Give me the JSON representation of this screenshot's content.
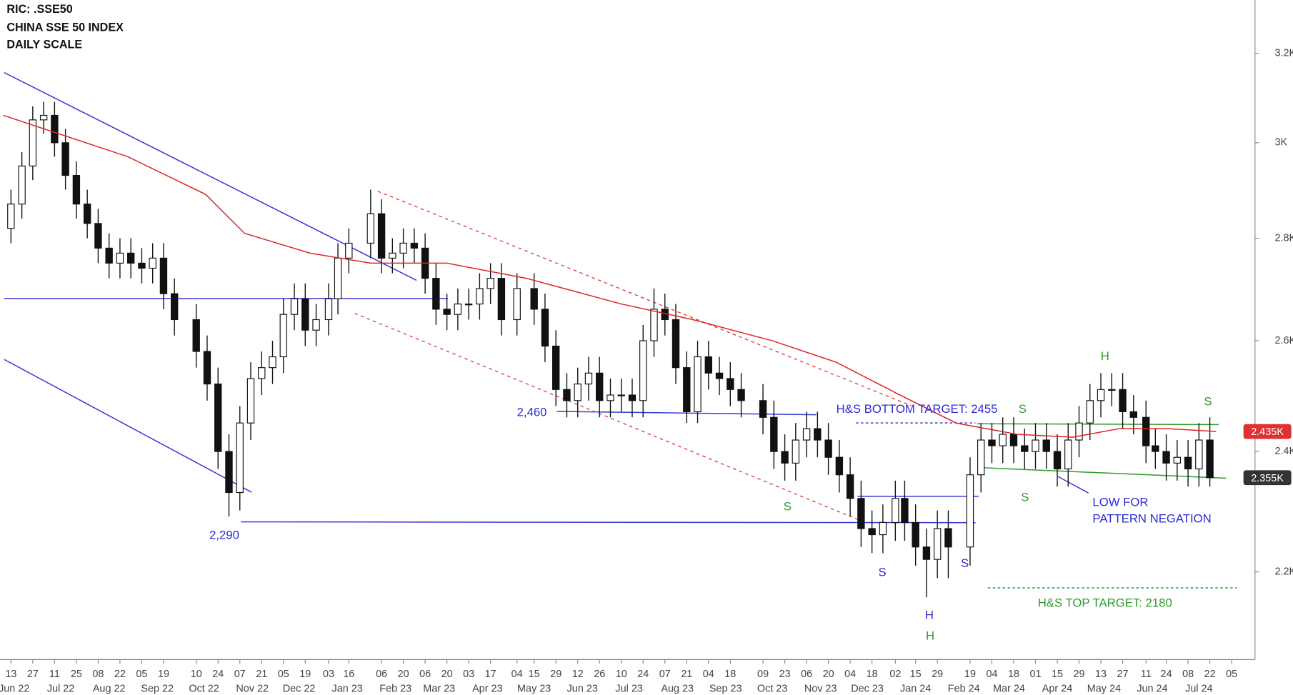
{
  "chart_data": {
    "type": "candlestick",
    "title": "RIC: .SSE50",
    "subtitle": "CHINA SSE 50 INDEX",
    "scale_note": "DAILY SCALE",
    "y_scale": "log",
    "ylim": [
      2065,
      3326
    ],
    "yticks": [
      {
        "value": 3200,
        "label": "3.2K"
      },
      {
        "value": 3000,
        "label": "3K"
      },
      {
        "value": 2800,
        "label": "2.8K"
      },
      {
        "value": 2600,
        "label": "2.6K"
      },
      {
        "value": 2400,
        "label": "2.4K"
      },
      {
        "value": 2200,
        "label": "2.2K"
      }
    ],
    "xlim": [
      "2022-06-06",
      "2024-08-20"
    ],
    "xticks": [
      {
        "value": "2022-06-13",
        "label": "13"
      },
      {
        "value": "2022-06-27",
        "label": "27"
      },
      {
        "value": "2022-07-11",
        "label": "11"
      },
      {
        "value": "2022-07-25",
        "label": "25"
      },
      {
        "value": "2022-08-08",
        "label": "08"
      },
      {
        "value": "2022-08-22",
        "label": "22"
      },
      {
        "value": "2022-09-05",
        "label": "05"
      },
      {
        "value": "2022-09-19",
        "label": "19"
      },
      {
        "value": "2022-10-10",
        "label": "10"
      },
      {
        "value": "2022-10-24",
        "label": "24"
      },
      {
        "value": "2022-11-07",
        "label": "07"
      },
      {
        "value": "2022-11-21",
        "label": "21"
      },
      {
        "value": "2022-12-05",
        "label": "05"
      },
      {
        "value": "2022-12-19",
        "label": "19"
      },
      {
        "value": "2023-01-03",
        "label": "03"
      },
      {
        "value": "2023-01-16",
        "label": "16"
      },
      {
        "value": "2023-02-06",
        "label": "06"
      },
      {
        "value": "2023-02-20",
        "label": "20"
      },
      {
        "value": "2023-03-06",
        "label": "06"
      },
      {
        "value": "2023-03-20",
        "label": "20"
      },
      {
        "value": "2023-04-03",
        "label": "03"
      },
      {
        "value": "2023-04-17",
        "label": "17"
      },
      {
        "value": "2023-05-04",
        "label": "04"
      },
      {
        "value": "2023-05-15",
        "label": "15"
      },
      {
        "value": "2023-05-29",
        "label": "29"
      },
      {
        "value": "2023-06-12",
        "label": "12"
      },
      {
        "value": "2023-06-26",
        "label": "26"
      },
      {
        "value": "2023-07-10",
        "label": "10"
      },
      {
        "value": "2023-07-24",
        "label": "24"
      },
      {
        "value": "2023-08-07",
        "label": "07"
      },
      {
        "value": "2023-08-21",
        "label": "21"
      },
      {
        "value": "2023-09-04",
        "label": "04"
      },
      {
        "value": "2023-09-18",
        "label": "18"
      },
      {
        "value": "2023-10-09",
        "label": "09"
      },
      {
        "value": "2023-10-23",
        "label": "23"
      },
      {
        "value": "2023-11-06",
        "label": "06"
      },
      {
        "value": "2023-11-20",
        "label": "20"
      },
      {
        "value": "2023-12-04",
        "label": "04"
      },
      {
        "value": "2023-12-18",
        "label": "18"
      },
      {
        "value": "2024-01-02",
        "label": "02"
      },
      {
        "value": "2024-01-15",
        "label": "15"
      },
      {
        "value": "2024-01-29",
        "label": "29"
      },
      {
        "value": "2024-02-19",
        "label": "19"
      },
      {
        "value": "2024-03-04",
        "label": "04"
      },
      {
        "value": "2024-03-18",
        "label": "18"
      },
      {
        "value": "2024-04-01",
        "label": "01"
      },
      {
        "value": "2024-04-15",
        "label": "15"
      },
      {
        "value": "2024-04-29",
        "label": "29"
      },
      {
        "value": "2024-05-13",
        "label": "13"
      },
      {
        "value": "2024-05-27",
        "label": "27"
      },
      {
        "value": "2024-06-11",
        "label": "11"
      },
      {
        "value": "2024-06-24",
        "label": "24"
      },
      {
        "value": "2024-07-08",
        "label": "08"
      },
      {
        "value": "2024-07-22",
        "label": "22"
      },
      {
        "value": "2024-08-05",
        "label": "05"
      }
    ],
    "month_labels": [
      {
        "value": "2022-06",
        "label": "Jun 22"
      },
      {
        "value": "2022-07",
        "label": "Jul 22"
      },
      {
        "value": "2022-08",
        "label": "Aug 22"
      },
      {
        "value": "2022-09",
        "label": "Sep 22"
      },
      {
        "value": "2022-10",
        "label": "Oct 22"
      },
      {
        "value": "2022-11",
        "label": "Nov 22"
      },
      {
        "value": "2022-12",
        "label": "Dec 22"
      },
      {
        "value": "2023-01",
        "label": "Jan 23"
      },
      {
        "value": "2023-02",
        "label": "Feb 23"
      },
      {
        "value": "2023-03",
        "label": "Mar 23"
      },
      {
        "value": "2023-04",
        "label": "Apr 23"
      },
      {
        "value": "2023-05",
        "label": "May 23"
      },
      {
        "value": "2023-06",
        "label": "Jun 23"
      },
      {
        "value": "2023-07",
        "label": "Jul 23"
      },
      {
        "value": "2023-08",
        "label": "Aug 23"
      },
      {
        "value": "2023-09",
        "label": "Sep 23"
      },
      {
        "value": "2023-10",
        "label": "Oct 23"
      },
      {
        "value": "2023-11",
        "label": "Nov 23"
      },
      {
        "value": "2023-12",
        "label": "Dec 23"
      },
      {
        "value": "2024-01",
        "label": "Jan 24"
      },
      {
        "value": "2024-02",
        "label": "Feb 24"
      },
      {
        "value": "2024-03",
        "label": "Mar 24"
      },
      {
        "value": "2024-04",
        "label": "Apr 24"
      },
      {
        "value": "2024-05",
        "label": "May 24"
      },
      {
        "value": "2024-06",
        "label": "Jun 24"
      },
      {
        "value": "2024-07",
        "label": "Jul 24"
      }
    ],
    "x": [
      "2022-06-13",
      "2022-06-20",
      "2022-06-27",
      "2022-07-04",
      "2022-07-11",
      "2022-07-18",
      "2022-07-25",
      "2022-08-01",
      "2022-08-08",
      "2022-08-15",
      "2022-08-22",
      "2022-08-29",
      "2022-09-05",
      "2022-09-12",
      "2022-09-19",
      "2022-09-26",
      "2022-10-10",
      "2022-10-17",
      "2022-10-24",
      "2022-10-31",
      "2022-11-07",
      "2022-11-14",
      "2022-11-21",
      "2022-11-28",
      "2022-12-05",
      "2022-12-12",
      "2022-12-19",
      "2022-12-26",
      "2023-01-03",
      "2023-01-09",
      "2023-01-16",
      "2023-01-30",
      "2023-02-06",
      "2023-02-13",
      "2023-02-20",
      "2023-02-27",
      "2023-03-06",
      "2023-03-13",
      "2023-03-20",
      "2023-03-27",
      "2023-04-03",
      "2023-04-10",
      "2023-04-17",
      "2023-04-24",
      "2023-05-04",
      "2023-05-15",
      "2023-05-22",
      "2023-05-29",
      "2023-06-05",
      "2023-06-12",
      "2023-06-19",
      "2023-06-26",
      "2023-07-03",
      "2023-07-10",
      "2023-07-17",
      "2023-07-24",
      "2023-07-31",
      "2023-08-07",
      "2023-08-14",
      "2023-08-21",
      "2023-08-28",
      "2023-09-04",
      "2023-09-11",
      "2023-09-18",
      "2023-09-25",
      "2023-10-09",
      "2023-10-16",
      "2023-10-23",
      "2023-10-30",
      "2023-11-06",
      "2023-11-13",
      "2023-11-20",
      "2023-11-27",
      "2023-12-04",
      "2023-12-11",
      "2023-12-18",
      "2023-12-25",
      "2024-01-02",
      "2024-01-08",
      "2024-01-15",
      "2024-01-22",
      "2024-01-29",
      "2024-02-05",
      "2024-02-19",
      "2024-02-26",
      "2024-03-04",
      "2024-03-11",
      "2024-03-18",
      "2024-03-25",
      "2024-04-01",
      "2024-04-08",
      "2024-04-15",
      "2024-04-22",
      "2024-04-29",
      "2024-05-06",
      "2024-05-13",
      "2024-05-20",
      "2024-05-27",
      "2024-06-03",
      "2024-06-11",
      "2024-06-17",
      "2024-06-24",
      "2024-07-01",
      "2024-07-08",
      "2024-07-15",
      "2024-07-22"
    ],
    "open": [
      2820,
      2870,
      2950,
      3050,
      3060,
      3000,
      2930,
      2870,
      2830,
      2780,
      2750,
      2770,
      2750,
      2740,
      2760,
      2690,
      2640,
      2580,
      2520,
      2400,
      2330,
      2450,
      2530,
      2550,
      2570,
      2650,
      2680,
      2620,
      2640,
      2680,
      2760,
      2790,
      2850,
      2760,
      2770,
      2790,
      2780,
      2720,
      2660,
      2650,
      2670,
      2670,
      2700,
      2720,
      2640,
      2700,
      2660,
      2590,
      2510,
      2490,
      2520,
      2540,
      2490,
      2500,
      2500,
      2490,
      2600,
      2660,
      2640,
      2550,
      2470,
      2570,
      2540,
      2530,
      2510,
      2490,
      2460,
      2400,
      2380,
      2420,
      2440,
      2420,
      2390,
      2360,
      2320,
      2270,
      2260,
      2280,
      2320,
      2280,
      2240,
      2220,
      2270,
      2240,
      2360,
      2420,
      2410,
      2430,
      2410,
      2400,
      2420,
      2400,
      2370,
      2420,
      2450,
      2490,
      2510,
      2510,
      2470,
      2460,
      2410,
      2400,
      2380,
      2390,
      2370,
      2420
    ],
    "high": [
      2900,
      2980,
      3080,
      3090,
      3090,
      3030,
      2960,
      2900,
      2860,
      2810,
      2800,
      2800,
      2780,
      2790,
      2790,
      2720,
      2670,
      2610,
      2550,
      2430,
      2480,
      2560,
      2580,
      2600,
      2680,
      2710,
      2710,
      2670,
      2710,
      2790,
      2820,
      2900,
      2880,
      2800,
      2820,
      2820,
      2810,
      2750,
      2690,
      2700,
      2700,
      2730,
      2750,
      2750,
      2730,
      2730,
      2690,
      2620,
      2540,
      2550,
      2570,
      2570,
      2530,
      2530,
      2530,
      2630,
      2700,
      2690,
      2670,
      2580,
      2600,
      2600,
      2570,
      2560,
      2540,
      2520,
      2490,
      2430,
      2450,
      2470,
      2470,
      2450,
      2420,
      2390,
      2350,
      2300,
      2310,
      2350,
      2350,
      2310,
      2270,
      2300,
      2300,
      2390,
      2450,
      2450,
      2460,
      2460,
      2440,
      2450,
      2450,
      2430,
      2450,
      2480,
      2520,
      2540,
      2540,
      2540,
      2500,
      2490,
      2440,
      2430,
      2420,
      2420,
      2450,
      2460
    ],
    "low": [
      2790,
      2840,
      2920,
      3020,
      2970,
      2900,
      2840,
      2800,
      2750,
      2720,
      2720,
      2720,
      2710,
      2710,
      2660,
      2610,
      2550,
      2490,
      2370,
      2290,
      2300,
      2420,
      2500,
      2520,
      2540,
      2620,
      2590,
      2590,
      2610,
      2650,
      2730,
      2760,
      2730,
      2730,
      2740,
      2750,
      2690,
      2630,
      2620,
      2620,
      2640,
      2640,
      2670,
      2610,
      2610,
      2630,
      2560,
      2480,
      2460,
      2460,
      2490,
      2460,
      2460,
      2470,
      2460,
      2460,
      2570,
      2610,
      2520,
      2450,
      2450,
      2510,
      2500,
      2480,
      2460,
      2430,
      2370,
      2350,
      2350,
      2390,
      2390,
      2360,
      2330,
      2290,
      2240,
      2230,
      2230,
      2250,
      2250,
      2210,
      2160,
      2190,
      2190,
      2210,
      2330,
      2380,
      2380,
      2380,
      2370,
      2370,
      2370,
      2340,
      2340,
      2390,
      2420,
      2460,
      2480,
      2440,
      2430,
      2380,
      2370,
      2350,
      2350,
      2340,
      2340,
      2340
    ],
    "close": [
      2870,
      2950,
      3050,
      3060,
      3000,
      2930,
      2870,
      2830,
      2780,
      2750,
      2770,
      2750,
      2740,
      2760,
      2690,
      2640,
      2580,
      2520,
      2400,
      2330,
      2450,
      2530,
      2550,
      2570,
      2650,
      2680,
      2620,
      2640,
      2680,
      2760,
      2790,
      2850,
      2760,
      2770,
      2790,
      2780,
      2720,
      2660,
      2650,
      2670,
      2670,
      2700,
      2720,
      2640,
      2700,
      2660,
      2590,
      2510,
      2490,
      2520,
      2540,
      2490,
      2500,
      2500,
      2490,
      2600,
      2660,
      2640,
      2550,
      2470,
      2570,
      2540,
      2530,
      2510,
      2490,
      2460,
      2400,
      2380,
      2420,
      2440,
      2420,
      2390,
      2360,
      2320,
      2270,
      2260,
      2280,
      2320,
      2280,
      2240,
      2220,
      2270,
      2240,
      2360,
      2420,
      2410,
      2430,
      2410,
      2400,
      2420,
      2400,
      2370,
      2420,
      2450,
      2490,
      2510,
      2510,
      2470,
      2460,
      2410,
      2400,
      2380,
      2390,
      2370,
      2420,
      2355
    ],
    "up_color": "#ffffff",
    "down_color": "#111111",
    "moving_average": {
      "color": "#e02424",
      "x": [
        "2022-06-08",
        "2022-08-27",
        "2022-10-16",
        "2022-11-10",
        "2022-12-22",
        "2023-01-30",
        "2023-03-20",
        "2023-05-10",
        "2023-07-10",
        "2023-08-25",
        "2023-10-15",
        "2023-11-25",
        "2024-01-05",
        "2024-02-10",
        "2024-03-20",
        "2024-04-25",
        "2024-05-25",
        "2024-06-25",
        "2024-07-26"
      ],
      "values": [
        3060,
        2970,
        2890,
        2810,
        2770,
        2750,
        2750,
        2720,
        2670,
        2640,
        2600,
        2560,
        2500,
        2450,
        2430,
        2425,
        2440,
        2440,
        2435
      ]
    },
    "price_tags": [
      {
        "value": 2435,
        "label": "2.435K",
        "color": "#e03030"
      },
      {
        "value": 2355,
        "label": "2.355K",
        "color": "#333333"
      }
    ],
    "annotations": [
      {
        "text": "2,290",
        "color": "#2b2bd6"
      },
      {
        "text": "2,460",
        "color": "#2b2bd6"
      },
      {
        "text": "H&S BOTTOM TARGET: 2455",
        "color": "#2b2bd6"
      },
      {
        "text": "S",
        "color": "#2e9a2e"
      },
      {
        "text": "S",
        "color": "#2e9a2e"
      },
      {
        "text": "S",
        "color": "#2e9a2e"
      },
      {
        "text": "H",
        "color": "#2e9a2e"
      },
      {
        "text": "S",
        "color": "#2e9a2e"
      },
      {
        "text": "H",
        "color": "#2e9a2e"
      },
      {
        "text": "S",
        "color": "#2b2bd6"
      },
      {
        "text": "H",
        "color": "#2b2bd6"
      },
      {
        "text": "S",
        "color": "#2b2bd6"
      },
      {
        "text": "LOW FOR",
        "color": "#2b2bd6"
      },
      {
        "text": "PATTERN NEGATION",
        "color": "#2b2bd6"
      },
      {
        "text": "H&S TOP TARGET: 2180",
        "color": "#2e9a2e"
      }
    ]
  }
}
